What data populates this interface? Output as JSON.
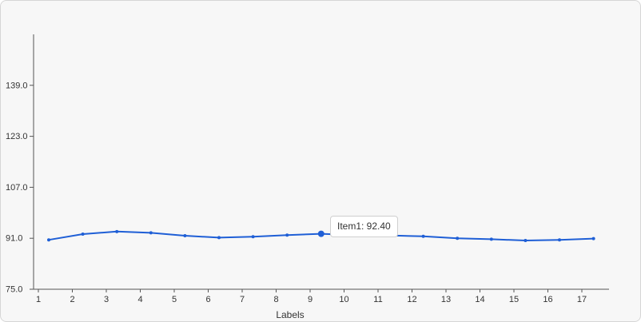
{
  "chart_data": {
    "type": "line",
    "categories": [
      "1",
      "2",
      "3",
      "4",
      "5",
      "6",
      "7",
      "8",
      "9",
      "10",
      "11",
      "12",
      "13",
      "14",
      "15",
      "16",
      "17"
    ],
    "series": [
      {
        "values": [
          90.5,
          92.3,
          93.1,
          92.7,
          91.8,
          91.2,
          91.5,
          92.0,
          92.4,
          92.0,
          91.9,
          91.6,
          91.0,
          90.7,
          90.3,
          90.5,
          90.9
        ],
        "color": "#1f5fd6"
      }
    ],
    "title": "",
    "xlabel": "Labels",
    "ylabel": "",
    "ylim": [
      75.0,
      155.0
    ],
    "yticks": [
      "75.0",
      "91.0",
      "107.0",
      "123.0",
      "139.0"
    ],
    "grid": false,
    "legend": "none",
    "tooltip": {
      "text": "Item1: 92.40",
      "index": 8
    }
  }
}
